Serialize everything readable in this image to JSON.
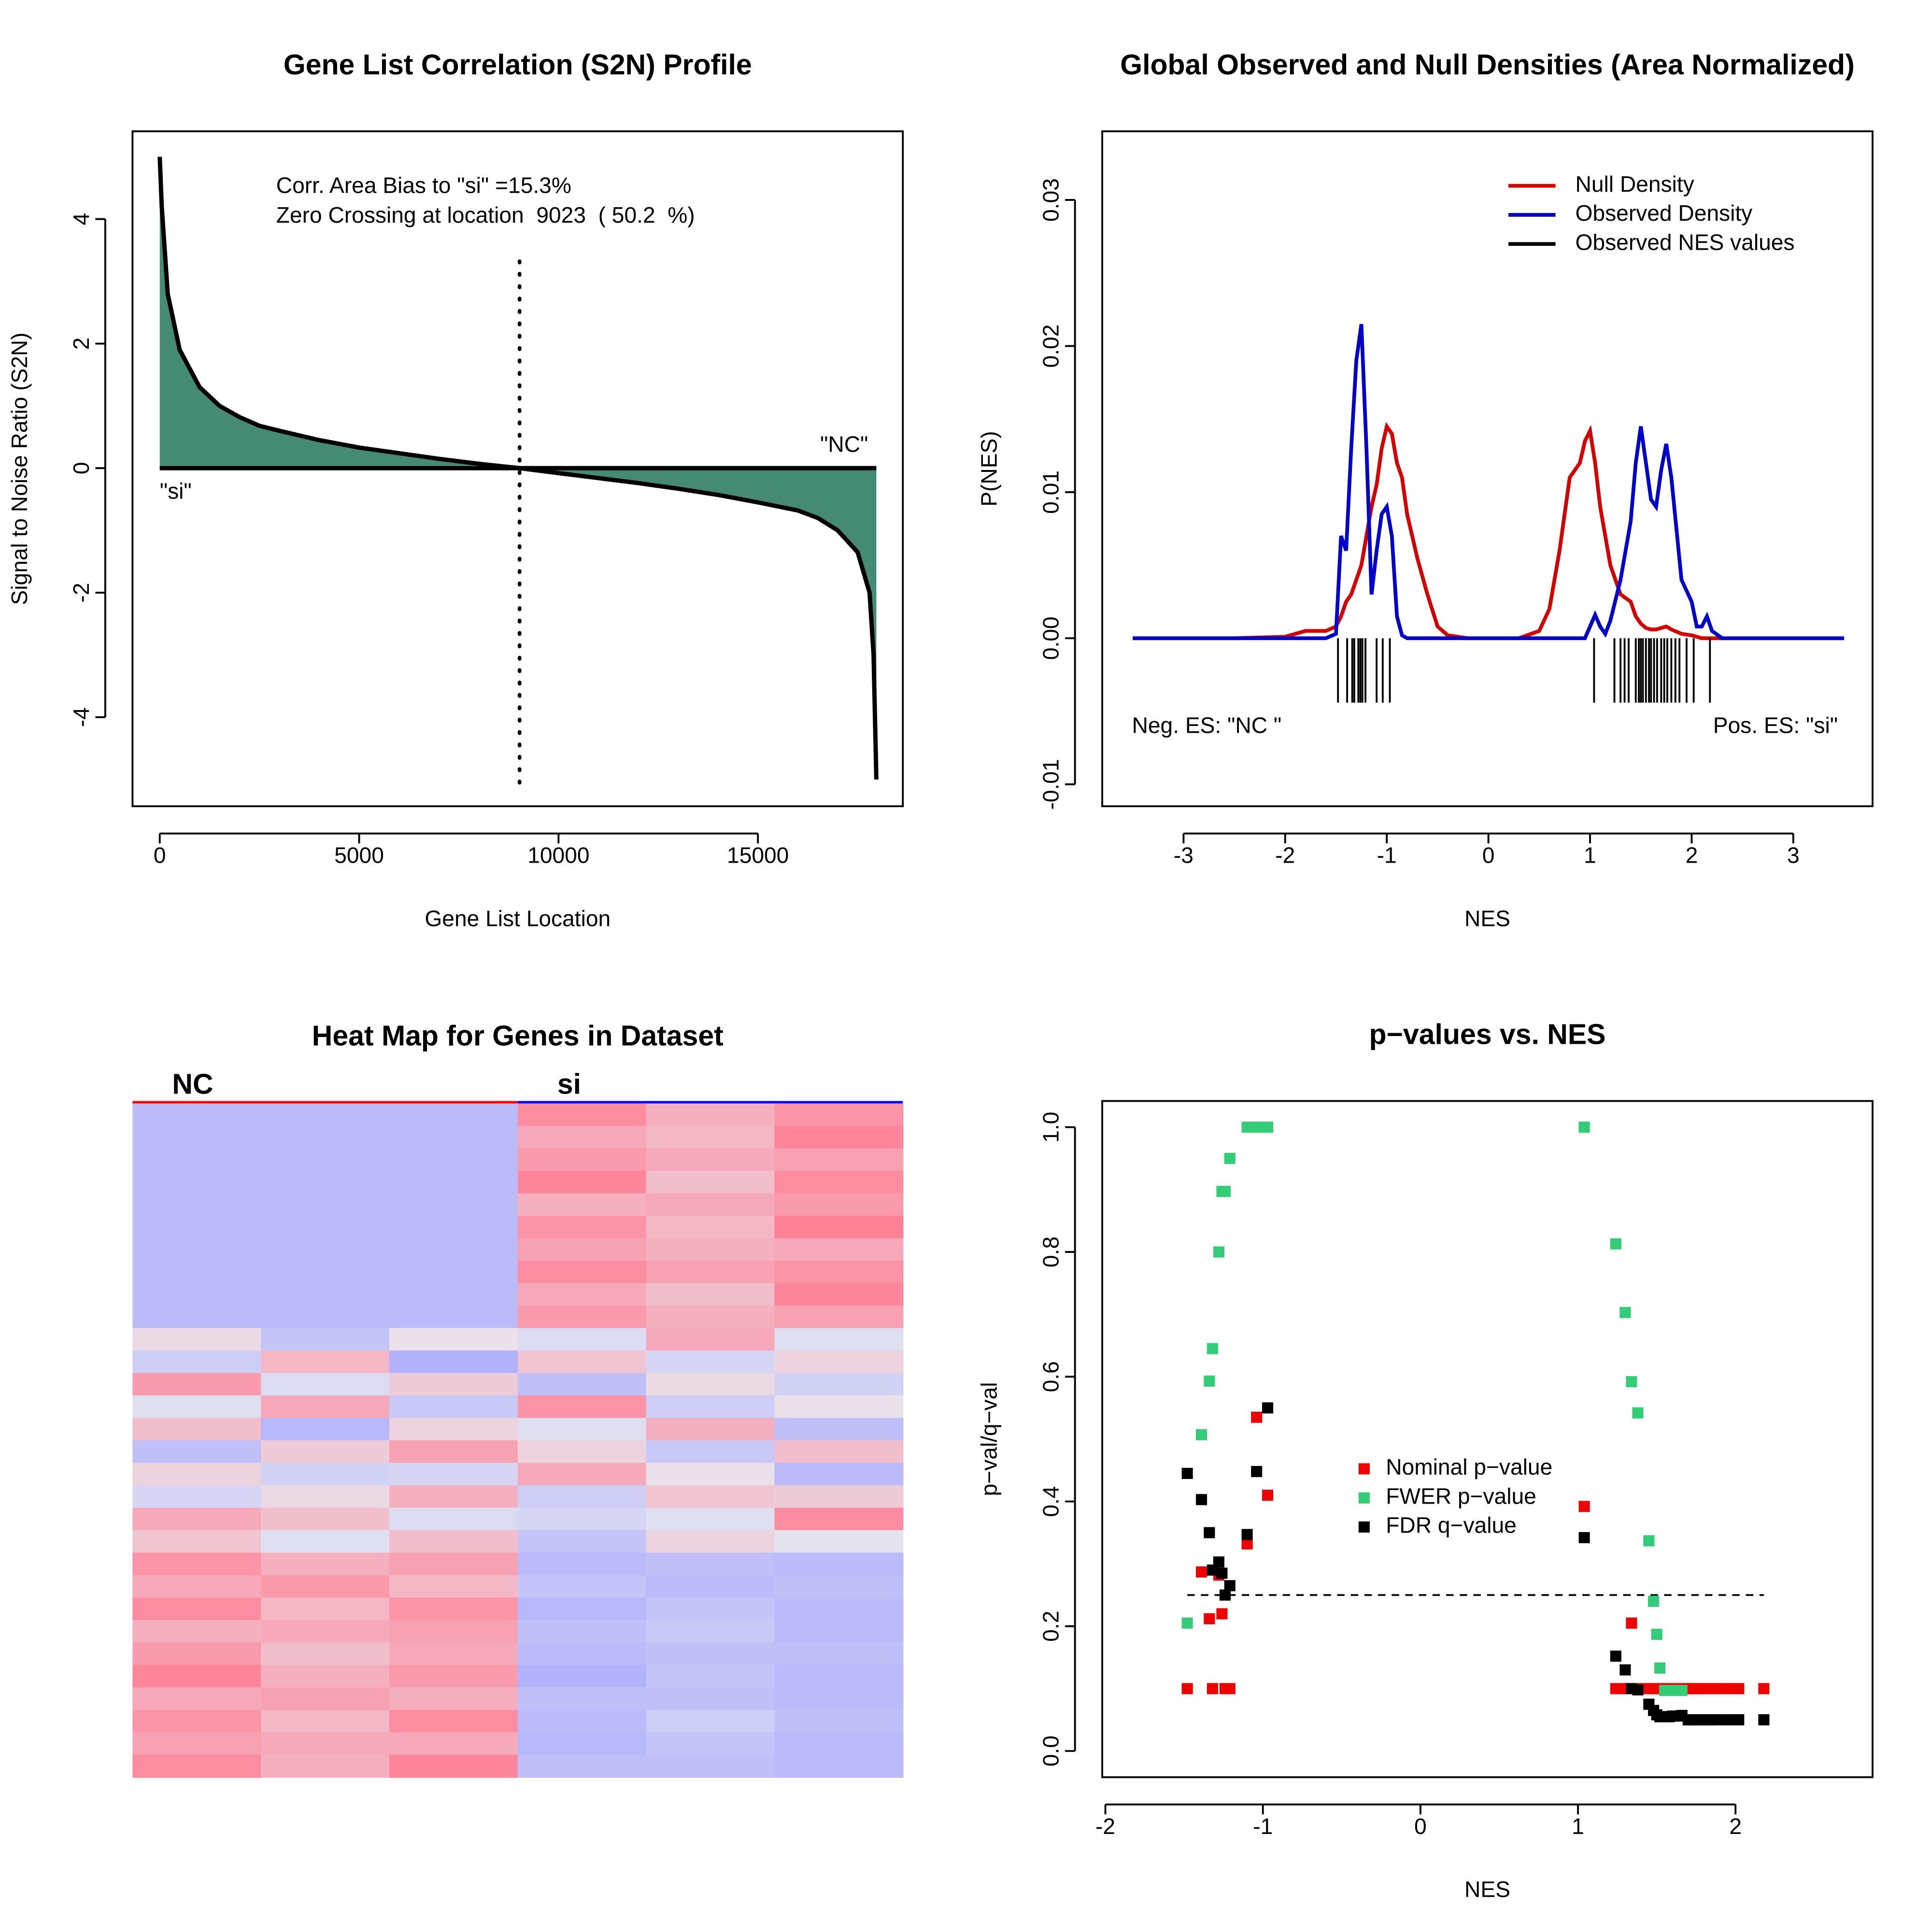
{
  "chart_data": [
    {
      "type": "area",
      "title": "Gene List Correlation (S2N) Profile",
      "xlabel": "Gene List Location",
      "ylabel": "Signal to Noise Ratio (S2N)",
      "annotations": [
        "Corr. Area Bias to \"si\" =15.3%",
        "Zero Crossing at location  9023  ( 50.2  %)"
      ],
      "left_label": "\"si\"",
      "right_label": "\"NC\"",
      "zero_crossing": 9023,
      "color": "#458b74",
      "x": [
        0,
        50,
        200,
        500,
        1000,
        1500,
        2000,
        2500,
        3000,
        4000,
        5000,
        6000,
        7000,
        8000,
        9023,
        10000,
        11000,
        12000,
        13000,
        14000,
        15000,
        16000,
        16500,
        17000,
        17500,
        17800,
        17900,
        17970
      ],
      "values": [
        5.0,
        4.2,
        2.8,
        1.9,
        1.3,
        1.0,
        0.82,
        0.68,
        0.6,
        0.45,
        0.33,
        0.24,
        0.15,
        0.07,
        0,
        -0.08,
        -0.16,
        -0.24,
        -0.33,
        -0.43,
        -0.55,
        -0.68,
        -0.8,
        -1.0,
        -1.35,
        -2.0,
        -3.0,
        -5.0
      ],
      "xlim": [
        -683,
        18634
      ],
      "ylim": [
        -5.43,
        5.41
      ],
      "xticks": [
        0,
        5000,
        10000,
        15000
      ],
      "yticks": [
        -4,
        -2,
        0,
        2,
        4
      ]
    },
    {
      "type": "density",
      "title": "Global Observed and Null Densities (Area Normalized)",
      "xlabel": "NES",
      "ylabel": "P(NES)",
      "annotations": [
        "Neg. ES: \"NC \"",
        "Pos. ES: \"si\""
      ],
      "legend": "top-right",
      "x": [
        -3.5,
        -2.5,
        -2.0,
        -1.8,
        -1.6,
        -1.5,
        -1.45,
        -1.4,
        -1.35,
        -1.3,
        -1.25,
        -1.2,
        -1.15,
        -1.1,
        -1.05,
        -1.0,
        -0.95,
        -0.9,
        -0.85,
        -0.8,
        -0.7,
        -0.6,
        -0.5,
        -0.4,
        -0.2,
        0.0,
        0.3,
        0.5,
        0.6,
        0.7,
        0.8,
        0.85,
        0.9,
        0.95,
        1.0,
        1.05,
        1.1,
        1.15,
        1.2,
        1.3,
        1.4,
        1.45,
        1.5,
        1.55,
        1.6,
        1.65,
        1.7,
        1.75,
        1.8,
        1.9,
        2.0,
        2.05,
        2.1,
        2.15,
        2.2,
        2.3,
        2.5,
        3.5
      ],
      "series": [
        {
          "name": "Null Density",
          "color": "#d40000",
          "values": [
            0,
            0,
            0.0001,
            0.0005,
            0.0005,
            0.0008,
            0.0015,
            0.0025,
            0.003,
            0.004,
            0.005,
            0.007,
            0.009,
            0.0105,
            0.013,
            0.0145,
            0.014,
            0.012,
            0.011,
            0.0085,
            0.0055,
            0.003,
            0.0008,
            0.0002,
            0,
            0,
            0,
            0.0005,
            0.002,
            0.006,
            0.011,
            0.0115,
            0.012,
            0.0135,
            0.0142,
            0.012,
            0.009,
            0.007,
            0.005,
            0.003,
            0.0025,
            0.0015,
            0.001,
            0.0007,
            0.0006,
            0.0006,
            0.0007,
            0.0008,
            0.0006,
            0.0003,
            0.0002,
            0.0001,
            0,
            0,
            0,
            0,
            0,
            0
          ]
        },
        {
          "name": "Observed Density",
          "color": "#0000cc",
          "values": [
            0,
            0,
            0,
            0,
            0,
            0.0003,
            0.007,
            0.006,
            0.013,
            0.019,
            0.0215,
            0.013,
            0.003,
            0.006,
            0.0085,
            0.009,
            0.007,
            0.0015,
            0.0002,
            0,
            0,
            0,
            0,
            0,
            0,
            0,
            0,
            0,
            0,
            0,
            0,
            0,
            0,
            0,
            0.0008,
            0.0016,
            0.0008,
            0.0003,
            0.0012,
            0.004,
            0.008,
            0.012,
            0.0145,
            0.012,
            0.0095,
            0.009,
            0.0115,
            0.0133,
            0.011,
            0.004,
            0.0025,
            0.0008,
            0.0008,
            0.0015,
            0.0005,
            0,
            0,
            0
          ]
        },
        {
          "name": "Observed NES values",
          "color": "#000000",
          "type": "rug",
          "x": [
            -1.48,
            -1.39,
            -1.34,
            -1.32,
            -1.28,
            -1.26,
            -1.24,
            -1.21,
            -1.1,
            -1.04,
            -0.97,
            1.04,
            1.24,
            1.3,
            1.34,
            1.38,
            1.45,
            1.48,
            1.5,
            1.52,
            1.55,
            1.58,
            1.6,
            1.63,
            1.66,
            1.7,
            1.73,
            1.76,
            1.8,
            1.84,
            1.88,
            1.95,
            2.02,
            2.18
          ]
        }
      ],
      "xlim": [
        -3.8,
        3.78
      ],
      "ylim": [
        -0.0115,
        0.0347
      ],
      "xticks": [
        -3,
        -2,
        -1,
        0,
        1,
        2,
        3
      ],
      "yticks": [
        {
          "value": -0.01,
          "label": "-0.01"
        },
        {
          "value": 0,
          "label": "0.00"
        },
        0.01,
        0.02,
        0.03
      ]
    },
    {
      "type": "heatmap",
      "title": "Heat Map for Genes in Dataset",
      "colors": {
        "low": "#a5a5ff",
        "mid": "#e8e8f0",
        "high": "#ff7f94"
      },
      "groups": [
        {
          "name": "NC",
          "color": "#ff0000",
          "values": [
            [
              -1,
              -1,
              -1
            ],
            [
              -1,
              -1,
              -1
            ],
            [
              -1,
              -1,
              -1
            ],
            [
              -1,
              -1,
              -1
            ],
            [
              -1,
              -1,
              -1
            ],
            [
              -1,
              -1,
              -1
            ],
            [
              -1,
              -1,
              -1
            ],
            [
              -1,
              -1,
              -1
            ],
            [
              -1,
              -1,
              -1
            ],
            [
              -1,
              -1,
              -1
            ],
            [
              0.2,
              -0.8,
              0.1
            ],
            [
              -0.6,
              0.7,
              -1.2
            ],
            [
              1.1,
              -0.3,
              0.4
            ],
            [
              -0.2,
              0.9,
              -0.7
            ],
            [
              0.6,
              -1.1,
              0.3
            ],
            [
              -0.9,
              0.4,
              1.0
            ],
            [
              0.3,
              -0.5,
              -0.4
            ],
            [
              -0.4,
              0.2,
              0.8
            ],
            [
              0.9,
              0.6,
              -0.3
            ],
            [
              0.5,
              -0.2,
              0.6
            ],
            [
              1.2,
              0.8,
              1.0
            ],
            [
              0.9,
              1.1,
              0.7
            ],
            [
              1.3,
              0.7,
              1.2
            ],
            [
              0.8,
              0.9,
              1.0
            ],
            [
              1.1,
              0.6,
              0.9
            ],
            [
              1.4,
              0.8,
              1.1
            ],
            [
              0.9,
              1.0,
              0.8
            ],
            [
              1.2,
              0.7,
              1.3
            ],
            [
              1.0,
              0.9,
              0.9
            ],
            [
              1.3,
              0.8,
              1.4
            ]
          ]
        },
        {
          "name": "si",
          "color": "#0000ff",
          "values": [
            [
              1.3,
              0.8,
              1.2
            ],
            [
              0.9,
              0.7,
              1.4
            ],
            [
              1.1,
              0.9,
              1.0
            ],
            [
              1.4,
              0.6,
              1.3
            ],
            [
              0.8,
              0.9,
              1.1
            ],
            [
              1.2,
              0.7,
              1.5
            ],
            [
              1.0,
              0.8,
              0.9
            ],
            [
              1.3,
              1.0,
              1.2
            ],
            [
              0.9,
              0.6,
              1.4
            ],
            [
              1.1,
              0.8,
              1.0
            ],
            [
              -0.3,
              0.9,
              -0.2
            ],
            [
              0.5,
              -0.4,
              0.3
            ],
            [
              -0.9,
              0.2,
              -0.5
            ],
            [
              1.2,
              -0.6,
              0.1
            ],
            [
              -0.2,
              0.8,
              -0.9
            ],
            [
              0.3,
              -0.7,
              0.6
            ],
            [
              0.9,
              0.1,
              -1.0
            ],
            [
              -0.6,
              0.5,
              0.4
            ],
            [
              -0.4,
              -0.2,
              1.3
            ],
            [
              -0.8,
              0.3,
              -0.1
            ],
            [
              -1.0,
              -0.9,
              -1.0
            ],
            [
              -0.8,
              -1.0,
              -0.9
            ],
            [
              -1.1,
              -0.8,
              -1.0
            ],
            [
              -0.9,
              -0.7,
              -1.0
            ],
            [
              -1.0,
              -0.9,
              -0.9
            ],
            [
              -1.2,
              -0.8,
              -1.0
            ],
            [
              -0.9,
              -0.9,
              -1.0
            ],
            [
              -1.0,
              -0.6,
              -0.9
            ],
            [
              -1.1,
              -0.8,
              -1.0
            ],
            [
              -0.9,
              -0.9,
              -1.0
            ]
          ]
        }
      ]
    },
    {
      "type": "scatter",
      "title": "p−values vs. NES",
      "xlabel": "NES",
      "ylabel": "p−val/q−val",
      "threshold": 0.25,
      "legend": "middle",
      "x": [
        -1.48,
        -1.39,
        -1.34,
        -1.32,
        -1.28,
        -1.26,
        -1.24,
        -1.21,
        -1.1,
        -1.04,
        -0.97,
        1.04,
        1.24,
        1.3,
        1.34,
        1.38,
        1.45,
        1.48,
        1.5,
        1.52,
        1.55,
        1.58,
        1.6,
        1.63,
        1.66,
        1.7,
        1.73,
        1.76,
        1.8,
        1.84,
        1.88,
        1.95,
        2.02,
        2.18
      ],
      "series": [
        {
          "name": "Nominal p−value",
          "color": "#ee0000",
          "values": [
            0.1,
            0.287,
            0.212,
            0.1,
            0.282,
            0.22,
            0.1,
            0.1,
            0.332,
            0.535,
            0.41,
            0.392,
            0.1,
            0.1,
            0.205,
            0.1,
            0.1,
            0.1,
            0.1,
            0.1,
            0.1,
            0.1,
            0.1,
            0.1,
            0.1,
            0.1,
            0.1,
            0.1,
            0.1,
            0.1,
            0.1,
            0.1,
            0.1,
            0.1
          ]
        },
        {
          "name": "FWER p−value",
          "color": "#33cc77",
          "values": [
            0.205,
            0.507,
            0.593,
            0.645,
            0.8,
            0.897,
            0.897,
            0.95,
            1.0,
            1.0,
            1.0,
            1.0,
            0.813,
            0.703,
            0.592,
            0.542,
            0.337,
            0.24,
            0.187,
            0.133,
            0.097,
            0.097,
            0.097,
            0.097,
            0.097,
            0.05,
            0.05,
            0.05,
            0.05,
            0.05,
            0.05,
            0.05,
            0.05,
            0.05
          ]
        },
        {
          "name": "FDR q−value",
          "color": "#000000",
          "values": [
            0.445,
            0.403,
            0.35,
            0.29,
            0.303,
            0.285,
            0.25,
            0.265,
            0.347,
            0.448,
            0.55,
            0.342,
            0.152,
            0.13,
            0.1,
            0.098,
            0.075,
            0.065,
            0.058,
            0.055,
            0.055,
            0.055,
            0.056,
            0.056,
            0.057,
            0.05,
            0.05,
            0.05,
            0.05,
            0.05,
            0.05,
            0.05,
            0.05,
            0.05
          ]
        }
      ],
      "xlim": [
        -2.02,
        2.87
      ],
      "ylim": [
        -0.042,
        1.042
      ],
      "xticks": [
        -2,
        -1,
        0,
        1,
        2
      ],
      "yticks": [
        {
          "value": 0,
          "label": "0.0"
        },
        0.2,
        0.4,
        0.6,
        0.8,
        {
          "value": 1,
          "label": "1.0"
        }
      ]
    }
  ]
}
